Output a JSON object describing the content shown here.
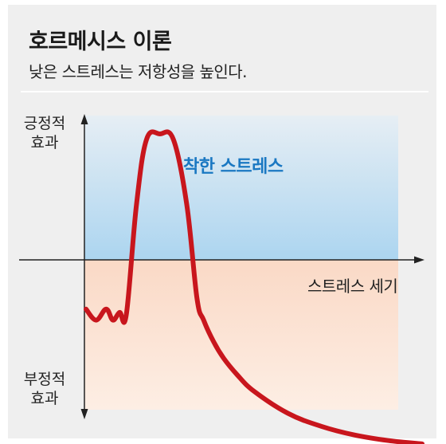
{
  "header": {
    "title": "호르메시스 이론",
    "subtitle": "낮은 스트레스는 저항성을 높인다."
  },
  "chart_data": {
    "type": "line",
    "xlabel": "스트레스 세기",
    "ylabel_positive": [
      "긍정적",
      "효과"
    ],
    "ylabel_negative": [
      "부정적",
      "효과"
    ],
    "annotations": [
      {
        "text": "착한 스트레스",
        "region": "positive-effect zone"
      }
    ],
    "series": [
      {
        "x": [
          0,
          3,
          6,
          8,
          10,
          12,
          15,
          18,
          22,
          26,
          30,
          33,
          35,
          38,
          41,
          45,
          50,
          60,
          70,
          80,
          90,
          100
        ],
        "y": [
          -0.45,
          -0.55,
          -0.45,
          -0.55,
          -0.48,
          -0.5,
          0.5,
          1.1,
          1.15,
          1.1,
          0.5,
          -0.35,
          -0.55,
          -0.75,
          -0.9,
          -1.05,
          -1.2,
          -1.4,
          -1.52,
          -1.6,
          -1.65,
          -1.68
        ]
      }
    ],
    "xlim": [
      0,
      100
    ],
    "ylim": [
      -2,
      1.4
    ],
    "colors": {
      "line": "#c8161d",
      "positive_zone": "#c3def3",
      "negative_zone": "#fbe2d2",
      "label_positive": "#1a78c2"
    },
    "grid": false,
    "legend": "none"
  }
}
